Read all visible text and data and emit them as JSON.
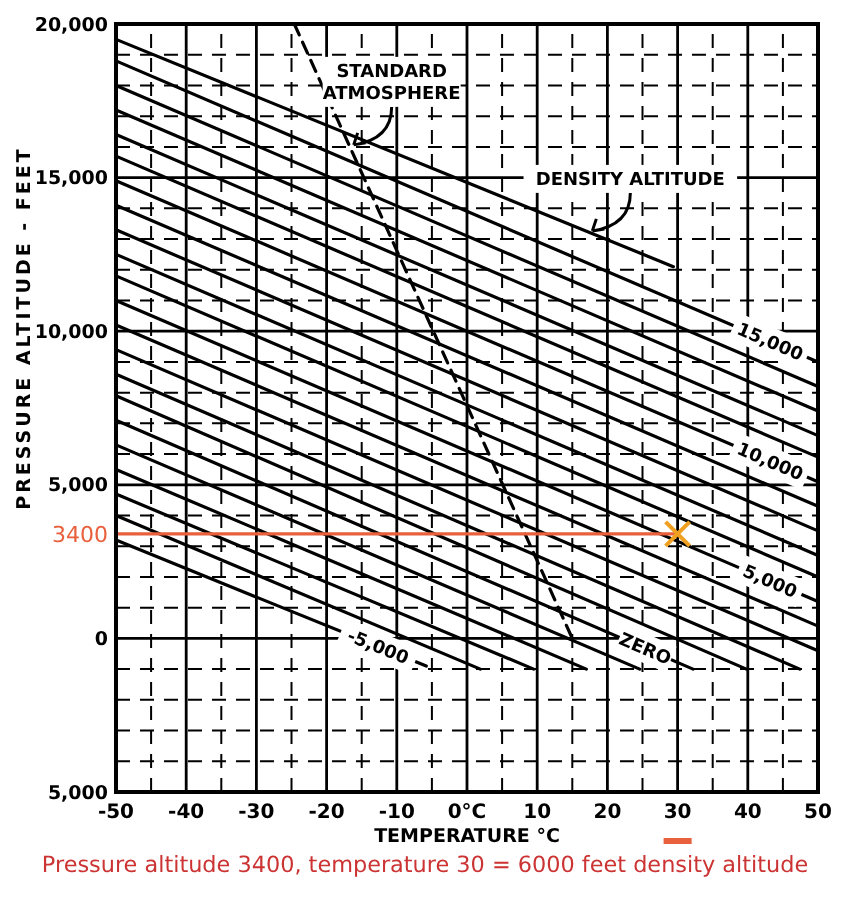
{
  "chart_data": {
    "type": "line",
    "xlabel": "TEMPERATURE °C",
    "ylabel": "PRESSURE ALTITUDE - FEET",
    "xlim": [
      -50,
      50
    ],
    "ylim": [
      -5000,
      20000
    ],
    "xticks": [
      -50,
      {
        "value": -45,
        "label": null
      },
      -40,
      {
        "value": -35,
        "label": null
      },
      -30,
      {
        "value": -25,
        "label": null
      },
      -20,
      {
        "value": -15,
        "label": null
      },
      -10,
      {
        "value": -5,
        "label": null
      },
      {
        "value": 0,
        "label": "0°C"
      },
      {
        "value": 5,
        "label": null
      },
      10,
      {
        "value": 15,
        "label": null
      },
      20,
      {
        "value": 25,
        "label": null
      },
      30,
      {
        "value": 35,
        "label": null
      },
      40,
      {
        "value": 45,
        "label": null
      },
      50
    ],
    "yticks": [
      {
        "value": -5000,
        "label": "5,000"
      },
      {
        "value": -4000,
        "label": null
      },
      {
        "value": -3000,
        "label": null
      },
      {
        "value": -2000,
        "label": null
      },
      {
        "value": -1000,
        "label": null
      },
      0,
      {
        "value": 1000,
        "label": null
      },
      {
        "value": 2000,
        "label": null
      },
      {
        "value": 3000,
        "label": null
      },
      {
        "value": 4000,
        "label": null
      },
      {
        "value": 5000,
        "label": "5,000"
      },
      {
        "value": 6000,
        "label": null
      },
      {
        "value": 7000,
        "label": null
      },
      {
        "value": 8000,
        "label": null
      },
      {
        "value": 9000,
        "label": null
      },
      {
        "value": 10000,
        "label": "10,000"
      },
      {
        "value": 11000,
        "label": null
      },
      {
        "value": 12000,
        "label": null
      },
      {
        "value": 13000,
        "label": null
      },
      {
        "value": 14000,
        "label": null
      },
      {
        "value": 15000,
        "label": "15,000"
      },
      {
        "value": 16000,
        "label": null
      },
      {
        "value": 17000,
        "label": null
      },
      {
        "value": 18000,
        "label": null
      },
      {
        "value": 19000,
        "label": null
      },
      {
        "value": 20000,
        "label": "20,000"
      }
    ],
    "grid": true,
    "series": [
      {
        "name": "-5,000",
        "color": "#000000",
        "x": [
          -50,
          -5.8
        ],
        "values": [
          3200,
          -900
        ]
      },
      {
        "color": "#000000",
        "x": [
          -50,
          1.9
        ],
        "values": [
          4000,
          -1000
        ]
      },
      {
        "color": "#000000",
        "x": [
          -50,
          9.5
        ],
        "values": [
          4700,
          -1000
        ]
      },
      {
        "color": "#000000",
        "x": [
          -50,
          17
        ],
        "values": [
          5500,
          -1000
        ]
      },
      {
        "color": "#000000",
        "x": [
          -50,
          24.6
        ],
        "values": [
          6300,
          -1000
        ]
      },
      {
        "name": "ZERO",
        "color": "#000000",
        "x": [
          -50,
          32.2
        ],
        "values": [
          7100,
          -1000
        ]
      },
      {
        "color": "#000000",
        "x": [
          -50,
          39.8
        ],
        "values": [
          7900,
          -1000
        ]
      },
      {
        "color": "#000000",
        "x": [
          -50,
          47.4
        ],
        "values": [
          8600,
          -1000
        ]
      },
      {
        "color": "#000000",
        "x": [
          -50,
          50
        ],
        "values": [
          9400,
          -400
        ]
      },
      {
        "color": "#000000",
        "x": [
          -50,
          50
        ],
        "values": [
          10200,
          400
        ]
      },
      {
        "name": "5,000",
        "color": "#000000",
        "x": [
          -50,
          50
        ],
        "values": [
          11000,
          1200
        ]
      },
      {
        "color": "#000000",
        "x": [
          -50,
          50
        ],
        "values": [
          11800,
          2000
        ]
      },
      {
        "color": "#000000",
        "x": [
          -50,
          50
        ],
        "values": [
          12500,
          2700
        ]
      },
      {
        "color": "#000000",
        "x": [
          -50,
          50
        ],
        "values": [
          13300,
          3500
        ]
      },
      {
        "color": "#000000",
        "x": [
          -50,
          50
        ],
        "values": [
          14100,
          4300
        ]
      },
      {
        "name": "10,000",
        "color": "#000000",
        "x": [
          -50,
          50
        ],
        "values": [
          14900,
          5100
        ]
      },
      {
        "color": "#000000",
        "x": [
          -50,
          50
        ],
        "values": [
          15700,
          5900
        ]
      },
      {
        "color": "#000000",
        "x": [
          -50,
          50
        ],
        "values": [
          16400,
          6600
        ]
      },
      {
        "color": "#000000",
        "x": [
          -50,
          50
        ],
        "values": [
          17200,
          7400
        ]
      },
      {
        "color": "#000000",
        "x": [
          -50,
          50
        ],
        "values": [
          18000,
          8200
        ]
      },
      {
        "name": "15,000",
        "color": "#000000",
        "x": [
          -50,
          50
        ],
        "values": [
          18800,
          9000
        ]
      },
      {
        "color": "#000000",
        "x": [
          -50,
          29.4
        ],
        "values": [
          19500,
          12100
        ]
      },
      {
        "color": "#000000",
        "line_style": "dashed",
        "x": [
          -24.6,
          15
        ],
        "values": [
          20000,
          0
        ]
      },
      {
        "color": "#e8603c",
        "x": [
          -50,
          30
        ],
        "values": [
          3400,
          3400
        ]
      },
      {
        "type": "scatter",
        "marker": "cross",
        "color": "#f0a020",
        "x": [
          30
        ],
        "values": [
          3400
        ]
      }
    ],
    "annotations": [
      {
        "text": "STANDARD ATMOSPHERE",
        "x": -17,
        "y": 16000
      },
      {
        "text": "DENSITY ALTITUDE",
        "x": 17,
        "y": 13200
      },
      {
        "text": "3400",
        "x": -50,
        "y": 3400
      },
      "Pressure altitude 3400, temperature 30 = 6000 feet density altitude"
    ]
  }
}
